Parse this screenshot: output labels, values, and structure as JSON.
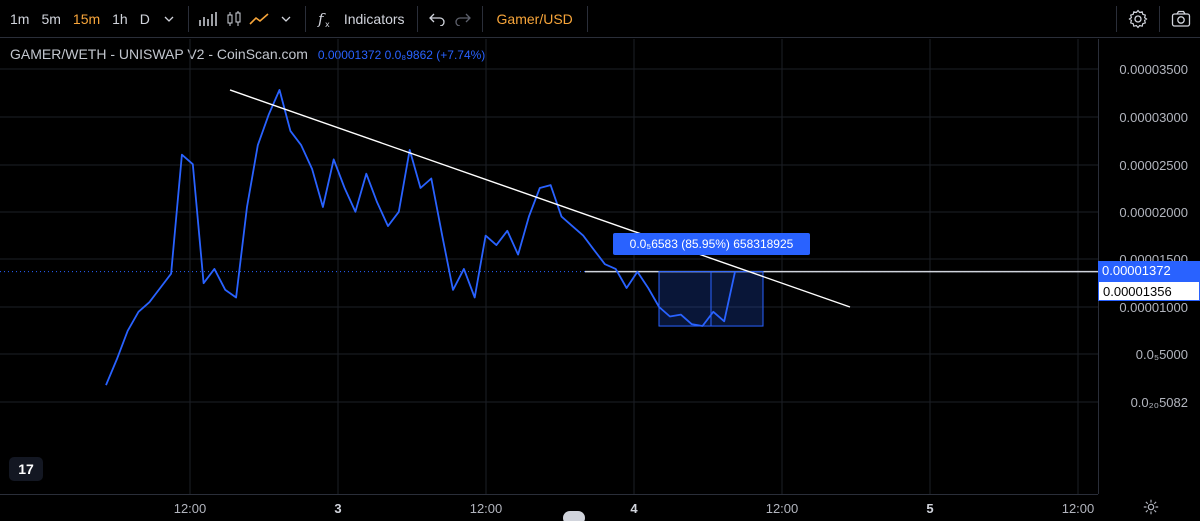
{
  "toolbar": {
    "timeframes": [
      "1m",
      "5m",
      "15m",
      "1h",
      "D"
    ],
    "active_timeframe": "15m",
    "indicators_label": "Indicators",
    "symbol_label": "Gamer/USD"
  },
  "legend": {
    "pair": "GAMER/WETH - UNISWAP V2 - CoinScan.com",
    "values": "0.00001372  0.0₈9862 (+7.74%)"
  },
  "measurement_label": "0.0₅6583 (85.95%) 658318925",
  "price_tags": {
    "current": "0.00001372",
    "crosshair": "0.00001356"
  },
  "colors": {
    "line": "#2962ff",
    "trendline": "#ffffff",
    "accent": "#f7a53a",
    "background": "#000000"
  },
  "chart_data": {
    "type": "line",
    "title": "GAMER/WETH - UNISWAP V2 - CoinScan.com",
    "y_tick_labels": [
      "0.00003500",
      "0.00003000",
      "0.00002500",
      "0.00002000",
      "0.00001500",
      "0.00001000",
      "0.0₅5000",
      "0.0₂₀5082"
    ],
    "x_tick_labels": [
      "12:00",
      "3",
      "12:00",
      "4",
      "12:00",
      "5",
      "12:00"
    ],
    "x_tick_bold": [
      false,
      true,
      false,
      true,
      false,
      true,
      false
    ],
    "last_price": 1.372e-05,
    "series": [
      {
        "values": [
          1.8e-06,
          4.5e-06,
          7.5e-06,
          9.5e-06,
          1.05e-05,
          1.2e-05,
          1.35e-05,
          2.6e-05,
          2.5e-05,
          1.25e-05,
          1.4e-05,
          1.18e-05,
          1.1e-05,
          2.05e-05,
          2.7e-05,
          3.02e-05,
          3.28e-05,
          2.85e-05,
          2.7e-05,
          2.45e-05,
          2.05e-05,
          2.55e-05,
          2.25e-05,
          2e-05,
          2.4e-05,
          2.1e-05,
          1.85e-05,
          2e-05,
          2.65e-05,
          2.25e-05,
          2.35e-05,
          1.75e-05,
          1.18e-05,
          1.4e-05,
          1.1e-05,
          1.75e-05,
          1.65e-05,
          1.8e-05,
          1.55e-05,
          1.95e-05,
          2.25e-05,
          2.28e-05,
          1.95e-05,
          1.85e-05,
          1.75e-05,
          1.6e-05,
          1.45e-05,
          1.4e-05,
          1.2e-05,
          1.37e-05,
          1.2e-05,
          1e-05,
          9e-06,
          9.2e-06,
          8.2e-06,
          8e-06,
          9.5e-06,
          8.5e-06,
          1.37e-05
        ]
      }
    ],
    "trendline": {
      "from": 3.28e-05,
      "to": 1e-05
    }
  }
}
